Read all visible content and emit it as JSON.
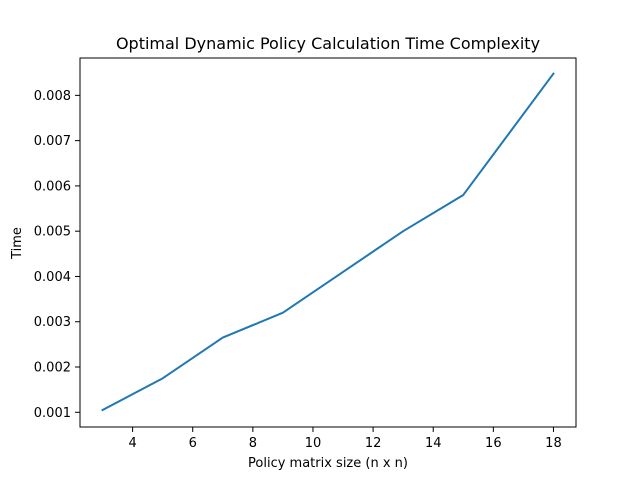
{
  "chart_data": {
    "type": "line",
    "title": "Optimal Dynamic Policy Calculation Time Complexity",
    "xlabel": "Policy matrix size (n x n)",
    "ylabel": "Time",
    "xlim": [
      2.25,
      18.75
    ],
    "ylim": [
      0.000675,
      0.008825
    ],
    "xticks": [
      4,
      6,
      8,
      10,
      12,
      14,
      16,
      18
    ],
    "yticks": [
      0.001,
      0.002,
      0.003,
      0.004,
      0.005,
      0.006,
      0.007,
      0.008
    ],
    "xtick_labels": [
      "4",
      "6",
      "8",
      "10",
      "12",
      "14",
      "16",
      "18"
    ],
    "ytick_labels": [
      "0.001",
      "0.002",
      "0.003",
      "0.004",
      "0.005",
      "0.006",
      "0.007",
      "0.008"
    ],
    "grid": false,
    "series": [
      {
        "color": "#1f77b4",
        "x": [
          3,
          5,
          7,
          9,
          11,
          13,
          15,
          18
        ],
        "y": [
          0.00105,
          0.00175,
          0.00265,
          0.0032,
          0.0041,
          0.005,
          0.0058,
          0.00848
        ]
      }
    ]
  }
}
